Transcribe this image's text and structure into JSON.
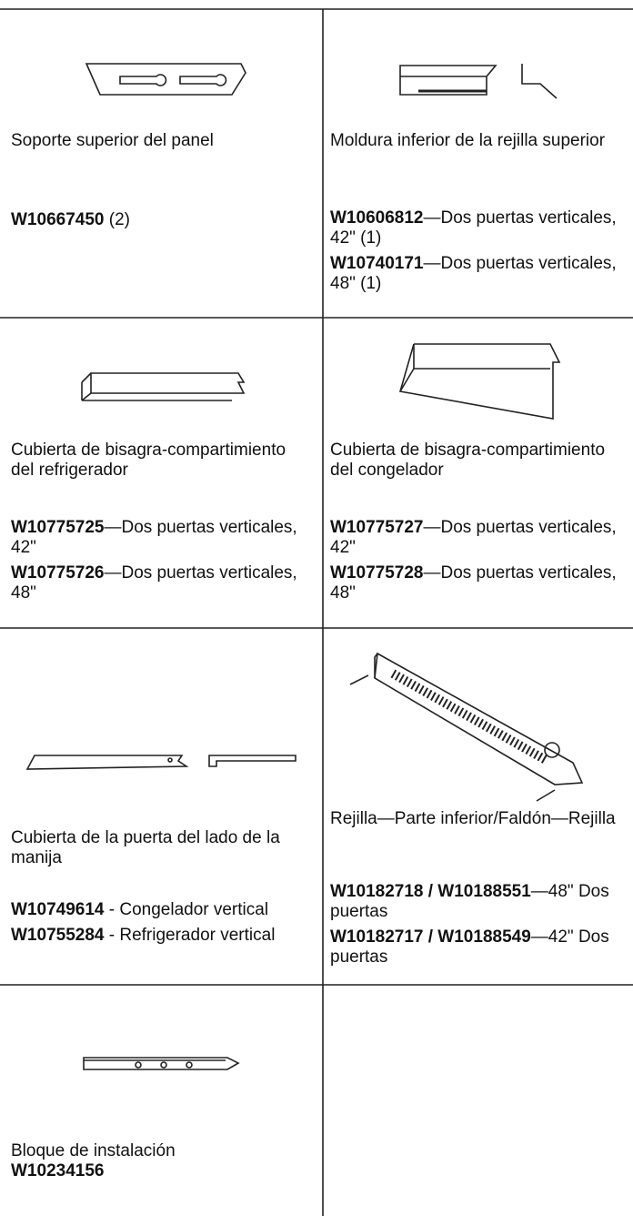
{
  "cells": [
    {
      "name": "Soporte superior del panel",
      "parts": [
        {
          "code": "W10667450",
          "text": " (2)"
        }
      ]
    },
    {
      "name": "Moldura inferior de la rejilla superior",
      "parts": [
        {
          "code": "W10606812",
          "text": "—Dos puertas verticales, 42\" (1)"
        },
        {
          "code": "W10740171",
          "text": "—Dos puertas verticales, 48\" (1)"
        }
      ]
    },
    {
      "name": "Cubierta de bisagra-compartimiento del refrigerador",
      "parts": [
        {
          "code": "W10775725",
          "text": "—Dos puertas verticales, 42\""
        },
        {
          "code": "W10775726",
          "text": "—Dos puertas verticales, 48\""
        }
      ]
    },
    {
      "name": "Cubierta de bisagra-compartimiento del congelador",
      "parts": [
        {
          "code": "W10775727",
          "text": "—Dos puertas verticales, 42\""
        },
        {
          "code": "W10775728",
          "text": "—Dos puertas verticales, 48\""
        }
      ]
    },
    {
      "name": "Cubierta de la puerta del lado de la manija",
      "parts": [
        {
          "code": "W10749614",
          "text": " - Congelador vertical"
        },
        {
          "code": "W10755284",
          "text": " - Refrigerador vertical"
        }
      ]
    },
    {
      "name": "Rejilla—Parte inferior/Faldón—Rejilla",
      "parts": [
        {
          "code": "W10182718 / W10188551",
          "text": "—48\" Dos puertas"
        },
        {
          "code": "W10182717 / W10188549",
          "text": "—42\" Dos puertas"
        }
      ]
    },
    {
      "name": "Bloque de instalación",
      "parts": [
        {
          "code": "W10234156"
        }
      ]
    }
  ]
}
